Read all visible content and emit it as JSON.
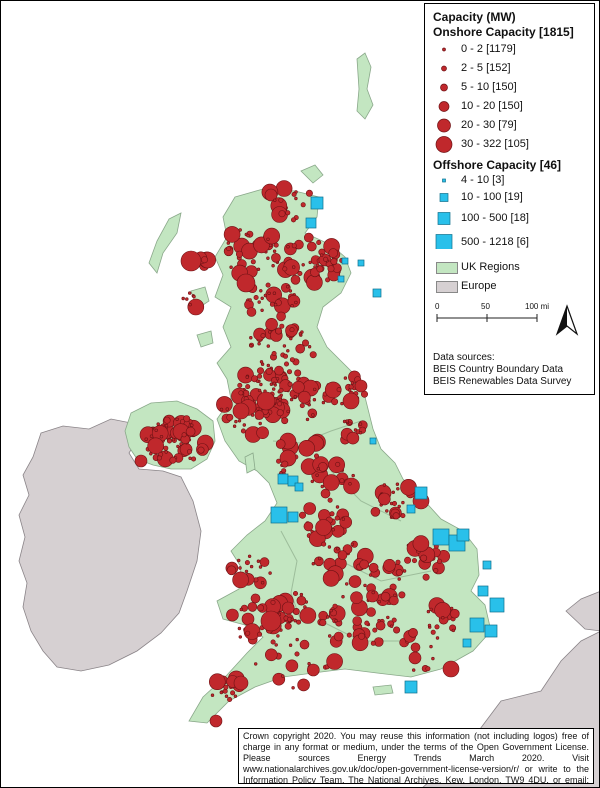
{
  "legend": {
    "title": "Capacity (MW)",
    "onshore_title": "Onshore Capacity [1815]",
    "onshore_items": [
      "0 - 2 [1179]",
      "2 - 5 [152]",
      "5 - 10 [150]",
      "10 - 20 [150]",
      "20 - 30 [79]",
      "30 - 322 [105]"
    ],
    "offshore_title": "Offshore Capacity [46]",
    "offshore_items": [
      "4 - 10 [3]",
      "10 - 100 [19]",
      "100 - 500 [18]",
      "500 - 1218 [6]"
    ],
    "uk_regions_label": "UK Regions",
    "europe_label": "Europe",
    "scale_labels": [
      "0",
      "50",
      "100 mi"
    ],
    "north_arrow_icon": "north-arrow-icon",
    "sources_title": "Data sources:",
    "sources": [
      "BEIS Country Boundary Data",
      "BEIS Renewables Data Survey"
    ]
  },
  "copyright": "Crown copyright 2020. You may reuse this information (not including logos) free of charge in any format or medium, under the terms of the Open Government License. Please sources Energy Trends March 2020. Visit www.nationalarchives.gov.uk/doc/open-government-license-version/r/ or write to the Information Policy Team, The National Archives, Kew, London, TW9 4DU, or email: psi@nationalarchives.gsi.gov.uk.",
  "colors": {
    "onshore": "#c0282c",
    "onshore_stroke": "#6e1215",
    "offshore": "#29c0ea",
    "offshore_stroke": "#0f6f8c",
    "uk": "#c3e6c1",
    "europe": "#d6d0d2",
    "sea": "#ffffff"
  }
}
